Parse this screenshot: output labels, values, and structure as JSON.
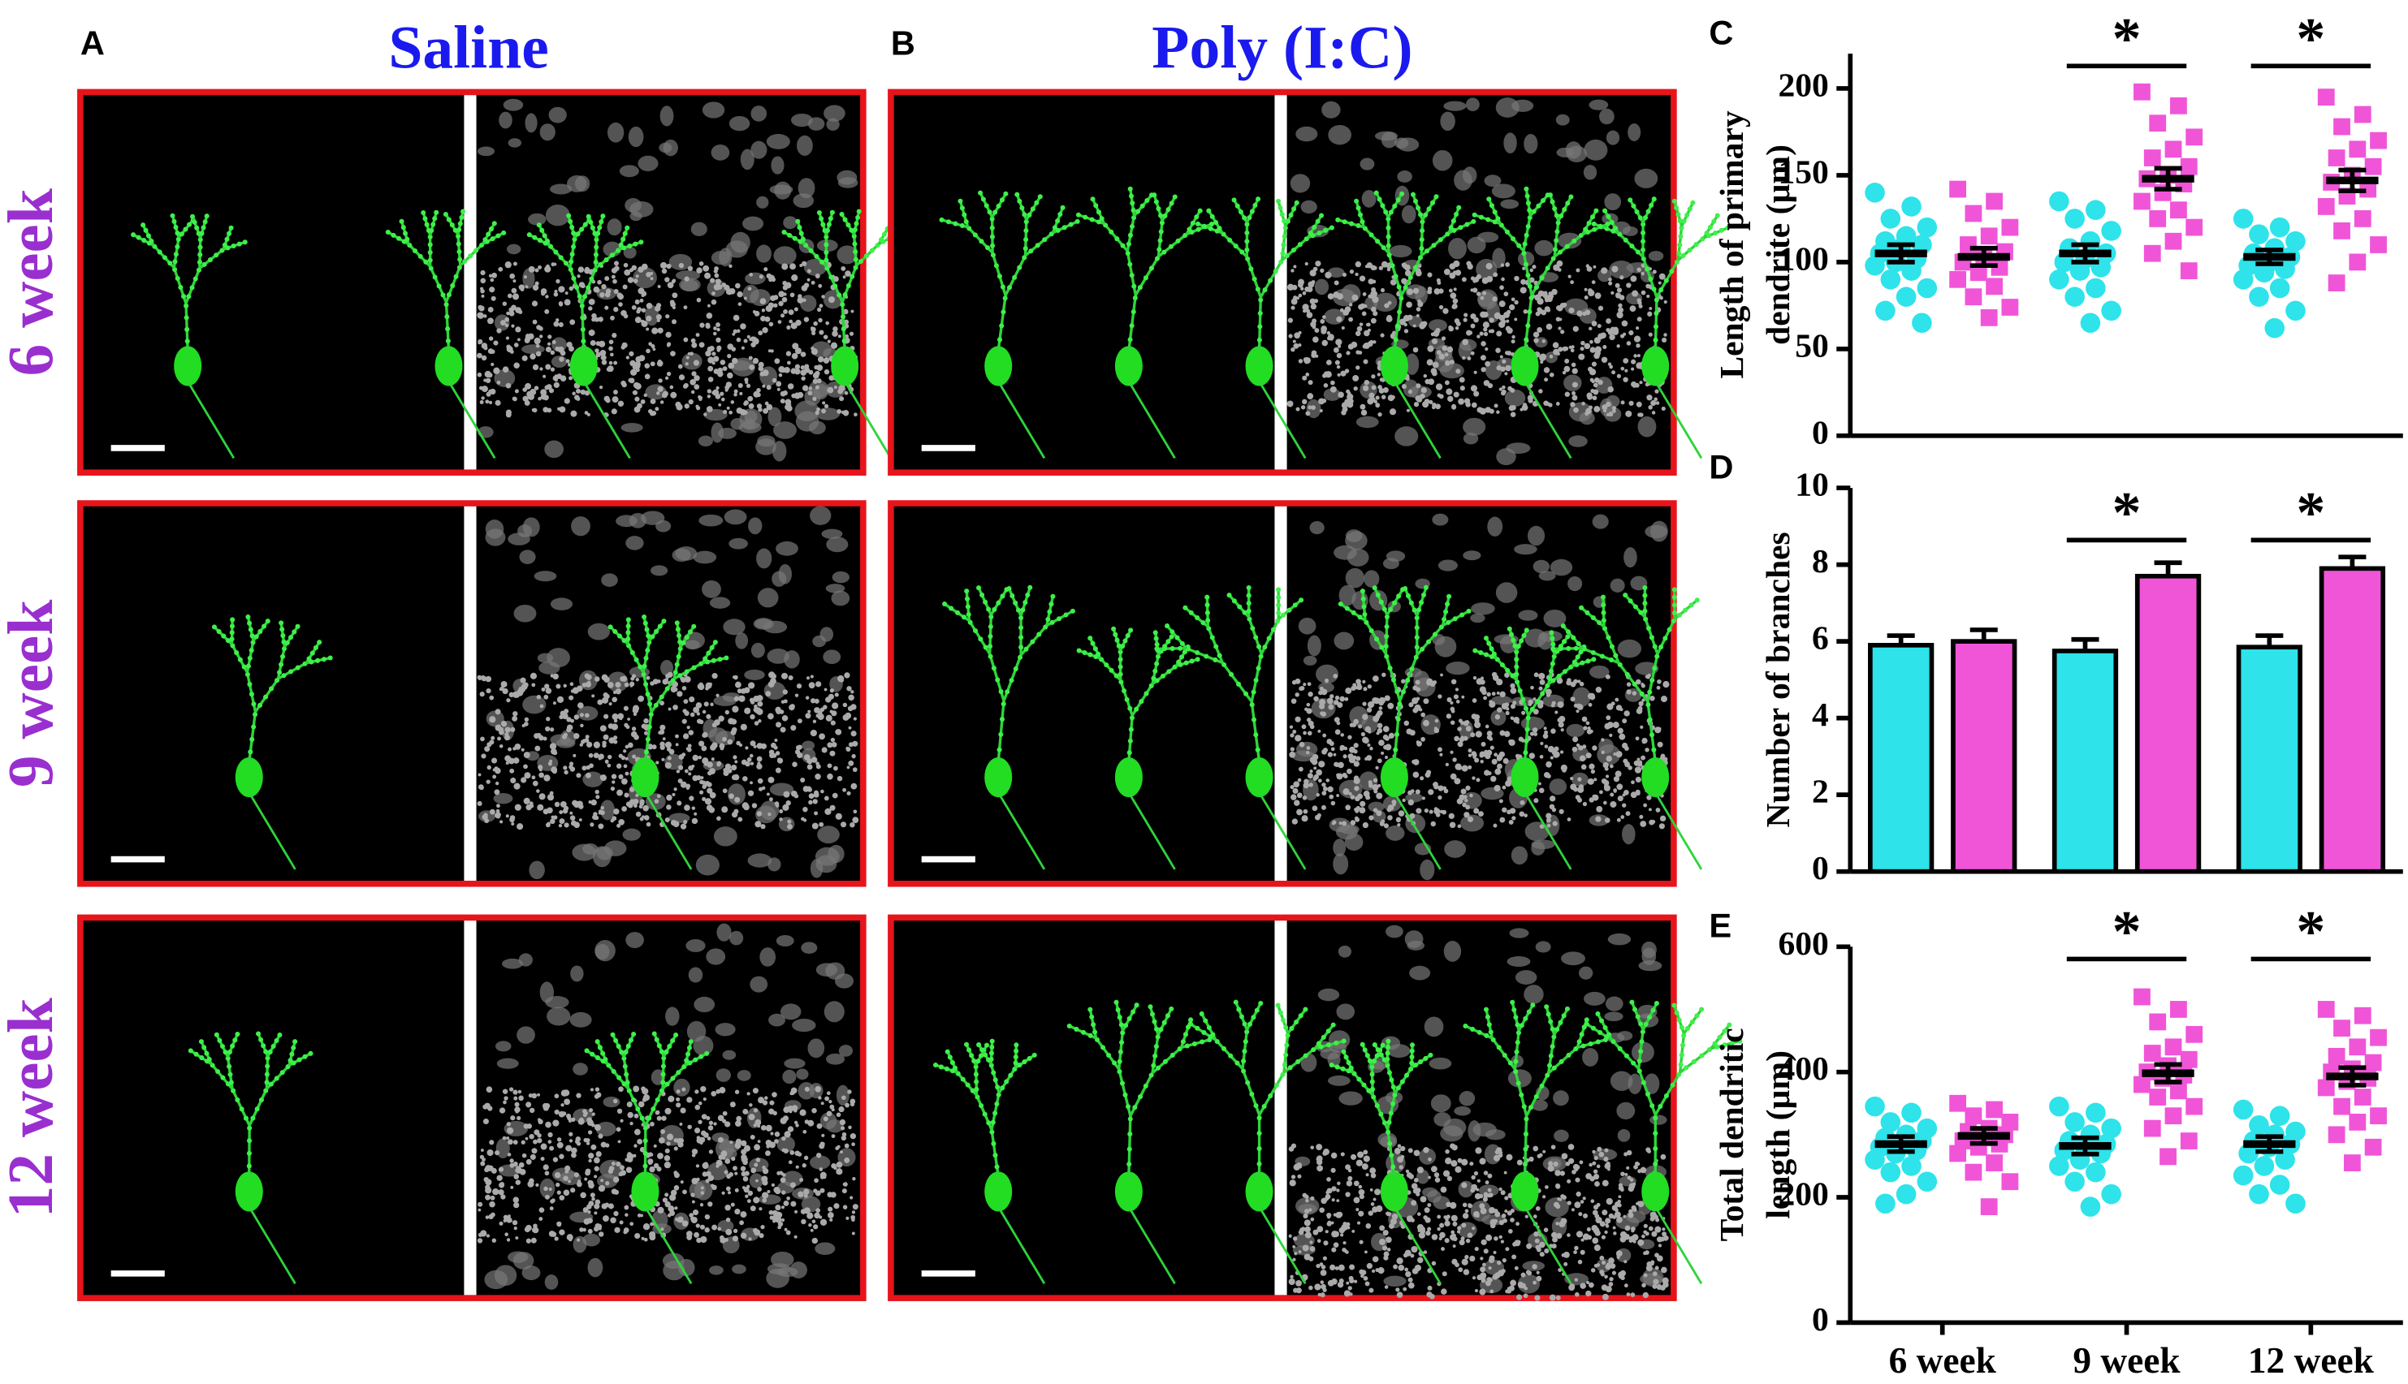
{
  "figure": {
    "panel_labels": [
      "A",
      "B"
    ],
    "columns": [
      "Saline",
      "Poly (I:C)"
    ],
    "rows": [
      "6 week",
      "9 week",
      "12 week"
    ]
  },
  "chart_data": [
    {
      "type": "dot",
      "label": "C",
      "ylabel": [
        "Length of primary",
        "dendrite (µm)"
      ],
      "ylim": [
        0,
        220
      ],
      "yticks": [
        0,
        50,
        100,
        150,
        200
      ],
      "annotations": [
        "*",
        "*"
      ],
      "series": [
        {
          "color": "#2ee3ea",
          "marker": "circle",
          "values": [
            [
              140,
              132,
              125,
              120,
              115,
              112,
              110,
              108,
              105,
              102,
              100,
              98,
              95,
              90,
              85,
              80,
              72,
              65
            ],
            [
              135,
              130,
              125,
              118,
              112,
              108,
              105,
              102,
              100,
              97,
              95,
              90,
              85,
              80,
              72,
              65
            ],
            [
              125,
              120,
              116,
              112,
              108,
              105,
              103,
              100,
              98,
              96,
              94,
              90,
              85,
              80,
              72,
              62
            ]
          ],
          "mean": [
            105,
            105,
            103
          ],
          "sem": [
            5,
            5,
            4
          ]
        },
        {
          "color": "#f055d8",
          "marker": "square",
          "values": [
            [
              142,
              135,
              128,
              120,
              115,
              110,
              106,
              103,
              100,
              97,
              94,
              90,
              86,
              80,
              74,
              68
            ],
            [
              198,
              190,
              180,
              172,
              165,
              160,
              155,
              150,
              148,
              145,
              140,
              135,
              130,
              125,
              120,
              112,
              105,
              95
            ],
            [
              195,
              185,
              178,
              170,
              165,
              160,
              155,
              150,
              146,
              142,
              138,
              132,
              125,
              118,
              110,
              100,
              88
            ]
          ],
          "mean": [
            103,
            148,
            147
          ],
          "sem": [
            5,
            6,
            6
          ]
        }
      ]
    },
    {
      "type": "bar",
      "label": "D",
      "ylabel": [
        "Number of branches"
      ],
      "ylim": [
        0,
        10
      ],
      "yticks": [
        0,
        2,
        4,
        6,
        8,
        10
      ],
      "annotations": [
        "*",
        "*"
      ],
      "series": [
        {
          "color": "#2ee3ea",
          "values": [
            5.9,
            5.75,
            5.85
          ],
          "errors": [
            0.25,
            0.3,
            0.3
          ]
        },
        {
          "color": "#f055d8",
          "values": [
            6.0,
            7.7,
            7.9
          ],
          "errors": [
            0.3,
            0.35,
            0.3
          ]
        }
      ]
    },
    {
      "type": "dot",
      "label": "E",
      "ylabel": [
        "Total dendritic",
        "length (µm)"
      ],
      "ylim": [
        0,
        600
      ],
      "yticks": [
        0,
        200,
        400,
        600
      ],
      "annotations": [
        "*",
        "*"
      ],
      "categories": [
        "6 week",
        "9 week",
        "12 week"
      ],
      "series": [
        {
          "color": "#2ee3ea",
          "marker": "circle",
          "values": [
            [
              345,
              335,
              320,
              310,
              300,
              295,
              290,
              285,
              280,
              275,
              270,
              260,
              250,
              240,
              225,
              205,
              190
            ],
            [
              345,
              335,
              320,
              310,
              300,
              290,
              285,
              280,
              275,
              270,
              260,
              250,
              240,
              225,
              205,
              185
            ],
            [
              340,
              330,
              315,
              305,
              300,
              290,
              285,
              280,
              270,
              260,
              250,
              235,
              220,
              205,
              190
            ]
          ],
          "mean": [
            285,
            282,
            285
          ],
          "sem": [
            12,
            13,
            12
          ]
        },
        {
          "color": "#f055d8",
          "marker": "square",
          "values": [
            [
              350,
              340,
              330,
              320,
              310,
              305,
              300,
              295,
              290,
              285,
              280,
              270,
              255,
              240,
              225,
              185
            ],
            [
              520,
              500,
              480,
              460,
              440,
              430,
              420,
              410,
              400,
              395,
              390,
              380,
              370,
              360,
              345,
              330,
              310,
              290,
              265
            ],
            [
              500,
              490,
              470,
              455,
              440,
              425,
              415,
              405,
              400,
              390,
              385,
              375,
              360,
              345,
              330,
              320,
              300,
              280,
              255
            ]
          ],
          "mean": [
            298,
            398,
            393
          ],
          "sem": [
            12,
            14,
            14
          ]
        }
      ]
    }
  ]
}
